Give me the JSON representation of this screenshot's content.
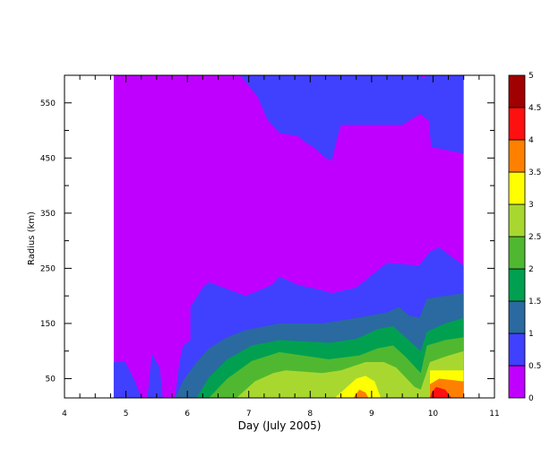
{
  "chart_data": {
    "type": "filled-contour",
    "xlabel": "Day (July 2005)",
    "ylabel": "Radius (km)",
    "xlim": [
      4,
      11
    ],
    "ylim": [
      15,
      600
    ],
    "data_x_range": [
      4.8,
      10.5
    ],
    "x_ticks": [
      4,
      5,
      6,
      7,
      8,
      9,
      10,
      11
    ],
    "x_tick_labels": [
      "4",
      "5",
      "6",
      "7",
      "8",
      "9",
      "10",
      "11"
    ],
    "y_ticks": [
      50,
      150,
      250,
      350,
      450,
      550
    ],
    "y_tick_labels": [
      "50",
      "150",
      "250",
      "350",
      "450",
      "550"
    ],
    "colorbar": {
      "levels": [
        0,
        0.5,
        1,
        1.5,
        2,
        2.5,
        3,
        3.5,
        4,
        4.5,
        5
      ],
      "level_labels": [
        "0",
        "0.5",
        "1",
        "1.5",
        "2",
        "2.5",
        "3",
        "3.5",
        "4",
        "4.5",
        "5"
      ],
      "colors": [
        "#c000ff",
        "#4040ff",
        "#2a6aa0",
        "#00a050",
        "#50b830",
        "#a8d830",
        "#ffff00",
        "#ff8000",
        "#ff1010",
        "#a00000"
      ]
    },
    "contour_boundaries": {
      "level_0_5": [
        [
          4.8,
          80
        ],
        [
          4.99,
          80
        ],
        [
          5.15,
          45
        ],
        [
          5.25,
          15
        ],
        [
          5.35,
          15
        ],
        [
          5.42,
          95
        ],
        [
          5.55,
          70
        ],
        [
          5.6,
          15
        ],
        [
          5.8,
          15
        ],
        [
          5.87,
          80
        ],
        [
          5.93,
          110
        ],
        [
          6.05,
          120
        ],
        [
          6.05,
          180
        ],
        [
          6.25,
          215
        ],
        [
          6.35,
          225
        ],
        [
          6.95,
          200
        ],
        [
          7.38,
          220
        ],
        [
          7.5,
          235
        ],
        [
          7.8,
          220
        ],
        [
          8.2,
          210
        ],
        [
          8.35,
          205
        ],
        [
          8.75,
          215
        ],
        [
          9.25,
          260
        ],
        [
          9.77,
          255
        ],
        [
          9.95,
          280
        ],
        [
          10.1,
          288
        ],
        [
          10.5,
          255
        ],
        [
          10.5,
          458
        ],
        [
          9.97,
          470
        ],
        [
          9.93,
          518
        ],
        [
          9.79,
          530
        ],
        [
          9.5,
          510
        ],
        [
          9.25,
          510
        ],
        [
          8.75,
          510
        ],
        [
          8.5,
          510
        ],
        [
          8.45,
          490
        ],
        [
          8.35,
          445
        ],
        [
          8.25,
          450
        ],
        [
          8.05,
          470
        ],
        [
          7.9,
          480
        ],
        [
          7.8,
          490
        ],
        [
          7.5,
          495
        ],
        [
          7.3,
          520
        ],
        [
          7.15,
          560
        ],
        [
          6.9,
          595
        ],
        [
          6.85,
          600
        ],
        [
          9.8,
          600
        ],
        [
          9.85,
          595
        ],
        [
          9.9,
          600
        ]
      ],
      "level_1": [
        [
          5.8,
          15
        ],
        [
          5.95,
          50
        ],
        [
          6.15,
          80
        ],
        [
          6.35,
          105
        ],
        [
          6.65,
          125
        ],
        [
          6.95,
          138
        ],
        [
          7.5,
          150
        ],
        [
          8.2,
          150
        ],
        [
          8.75,
          160
        ],
        [
          9.25,
          170
        ],
        [
          9.45,
          180
        ],
        [
          9.6,
          165
        ],
        [
          9.78,
          160
        ],
        [
          9.9,
          195
        ],
        [
          10.2,
          200
        ],
        [
          10.5,
          205
        ]
      ],
      "level_1_5": [
        [
          6.15,
          15
        ],
        [
          6.35,
          52
        ],
        [
          6.65,
          85
        ],
        [
          7.05,
          110
        ],
        [
          7.5,
          120
        ],
        [
          8.3,
          115
        ],
        [
          8.75,
          122
        ],
        [
          9.1,
          140
        ],
        [
          9.35,
          145
        ],
        [
          9.55,
          125
        ],
        [
          9.8,
          100
        ],
        [
          9.9,
          135
        ],
        [
          10.2,
          150
        ],
        [
          10.5,
          160
        ]
      ],
      "level_2": [
        [
          6.35,
          15
        ],
        [
          6.65,
          50
        ],
        [
          7.05,
          82
        ],
        [
          7.5,
          98
        ],
        [
          8.3,
          85
        ],
        [
          8.8,
          92
        ],
        [
          9.1,
          105
        ],
        [
          9.35,
          110
        ],
        [
          9.55,
          90
        ],
        [
          9.8,
          60
        ],
        [
          9.9,
          110
        ],
        [
          10.2,
          120
        ],
        [
          10.5,
          125
        ]
      ],
      "level_2_5": [
        [
          6.8,
          15
        ],
        [
          7.1,
          45
        ],
        [
          7.4,
          60
        ],
        [
          7.6,
          65
        ],
        [
          8.2,
          60
        ],
        [
          8.5,
          65
        ],
        [
          8.9,
          80
        ],
        [
          9.2,
          80
        ],
        [
          9.4,
          70
        ],
        [
          9.7,
          35
        ],
        [
          9.8,
          30
        ],
        [
          9.95,
          80
        ],
        [
          10.2,
          90
        ],
        [
          10.5,
          100
        ]
      ],
      "level_3": [
        [
          8.4,
          15
        ],
        [
          8.6,
          35
        ],
        [
          8.75,
          50
        ],
        [
          8.9,
          55
        ],
        [
          9.05,
          45
        ],
        [
          9.15,
          15
        ],
        [
          9.95,
          15
        ],
        [
          9.95,
          65
        ],
        [
          10.5,
          65
        ]
      ],
      "level_3_5": [
        [
          8.7,
          15
        ],
        [
          8.8,
          30
        ],
        [
          8.9,
          25
        ],
        [
          8.95,
          15
        ],
        [
          9.95,
          15
        ],
        [
          9.95,
          40
        ],
        [
          10.1,
          50
        ],
        [
          10.5,
          45
        ]
      ],
      "level_4": [
        [
          9.95,
          15
        ],
        [
          9.98,
          25
        ],
        [
          10.05,
          35
        ],
        [
          10.2,
          30
        ],
        [
          10.3,
          15
        ]
      ]
    }
  }
}
